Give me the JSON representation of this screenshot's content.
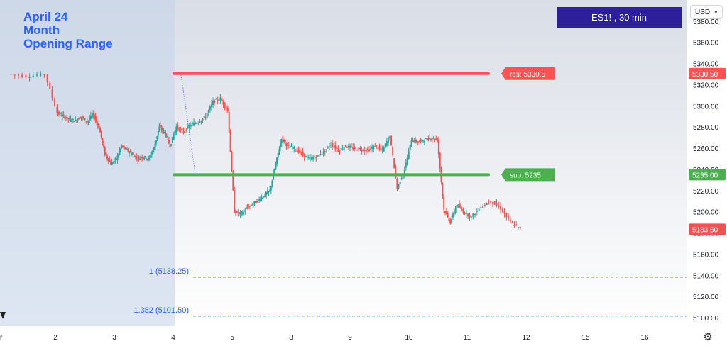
{
  "header": {
    "title_lines": [
      "April 24",
      "Month",
      "Opening Range"
    ],
    "symbol": "ES1! , 30 min",
    "currency": "USD"
  },
  "colors": {
    "up": "#26a69a",
    "down": "#ef5350",
    "resistance": "#ff5252",
    "support": "#4caf50",
    "fib": "#2962ff",
    "range_shade": "#c6d6ea",
    "symbol_box": "#2d1f99"
  },
  "icons": {
    "settings": "gear-icon",
    "currency_dropdown": "chevron-down-icon"
  },
  "chart_data": {
    "type": "candlestick",
    "title": "",
    "xlabel": "",
    "ylabel": "",
    "x_ticks": [
      "r",
      "2",
      "3",
      "4",
      "5",
      "8",
      "9",
      "10",
      "11",
      "12",
      "15",
      "16"
    ],
    "y_ticks": [
      5100,
      5120,
      5140,
      5160,
      5180,
      5200,
      5220,
      5240,
      5260,
      5280,
      5300,
      5320,
      5340,
      5360,
      5380
    ],
    "y_tick_labels": [
      "5100.00",
      "5120.00",
      "5140.00",
      "5160.00",
      "5180.00",
      "5200.00",
      "5220.00",
      "5240.00",
      "5260.00",
      "5280.00",
      "5300.00",
      "5320.00",
      "5340.00",
      "5360.00",
      "5380.00"
    ],
    "ylim": [
      5092,
      5400
    ],
    "grid": false,
    "price_path": [
      [
        "r",
        5330
      ],
      [
        "r",
        5328
      ],
      [
        "r",
        5330
      ],
      [
        "2",
        5293
      ],
      [
        "2",
        5290
      ],
      [
        "2",
        5287
      ],
      [
        "2",
        5286
      ],
      [
        "2",
        5290
      ],
      [
        "2",
        5285
      ],
      [
        "2",
        5292
      ],
      [
        "2",
        5280
      ],
      [
        "2",
        5255
      ],
      [
        "2",
        5245
      ],
      [
        "3",
        5250
      ],
      [
        "3",
        5262
      ],
      [
        "3",
        5258
      ],
      [
        "3",
        5254
      ],
      [
        "3",
        5250
      ],
      [
        "3",
        5252
      ],
      [
        "3",
        5250
      ],
      [
        "3",
        5260
      ],
      [
        "3",
        5280
      ],
      [
        "3",
        5275
      ],
      [
        "3",
        5262
      ],
      [
        "4",
        5280
      ],
      [
        "4",
        5275
      ],
      [
        "4",
        5282
      ],
      [
        "4",
        5285
      ],
      [
        "4",
        5290
      ],
      [
        "4",
        5304
      ],
      [
        "4",
        5307
      ],
      [
        "4",
        5295
      ],
      [
        "5",
        5200
      ],
      [
        "5",
        5198
      ],
      [
        "5",
        5203
      ],
      [
        "5",
        5207
      ],
      [
        "5",
        5211
      ],
      [
        "5",
        5215
      ],
      [
        "5",
        5220
      ],
      [
        "5",
        5245
      ],
      [
        "5",
        5270
      ],
      [
        "5",
        5262
      ],
      [
        "8",
        5260
      ],
      [
        "8",
        5255
      ],
      [
        "8",
        5250
      ],
      [
        "8",
        5252
      ],
      [
        "8",
        5256
      ],
      [
        "8",
        5264
      ],
      [
        "8",
        5258
      ],
      [
        "8",
        5262
      ],
      [
        "9",
        5260
      ],
      [
        "9",
        5259
      ],
      [
        "9",
        5258
      ],
      [
        "9",
        5262
      ],
      [
        "9",
        5258
      ],
      [
        "9",
        5272
      ],
      [
        "9",
        5222
      ],
      [
        "9",
        5240
      ],
      [
        "10",
        5268
      ],
      [
        "10",
        5266
      ],
      [
        "10",
        5268
      ],
      [
        "10",
        5270
      ],
      [
        "10",
        5268
      ],
      [
        "10",
        5202
      ],
      [
        "10",
        5190
      ],
      [
        "10",
        5207
      ],
      [
        "10",
        5200
      ],
      [
        "11",
        5195
      ],
      [
        "11",
        5205
      ],
      [
        "11",
        5210
      ],
      [
        "11",
        5203
      ],
      [
        "11",
        5190
      ],
      [
        "11",
        5183.5
      ]
    ],
    "current_price": 5183.5,
    "current_price_label": "5183.50",
    "opening_range": {
      "from": "r",
      "to": "4"
    },
    "levels": [
      {
        "name": "res",
        "value": 5330.5,
        "label": "res: 5330.5",
        "axis_label": "5330.50",
        "from": "4",
        "to": "11"
      },
      {
        "name": "sup",
        "value": 5235,
        "label": "sup: 5235",
        "axis_label": "5235.00",
        "from": "4",
        "to": "11"
      }
    ],
    "fib_levels": [
      {
        "ratio": "1",
        "value": 5138.25,
        "label": "1 (5138.25)"
      },
      {
        "ratio": "1.382",
        "value": 5101.5,
        "label": "1.382 (5101.50)"
      }
    ]
  }
}
